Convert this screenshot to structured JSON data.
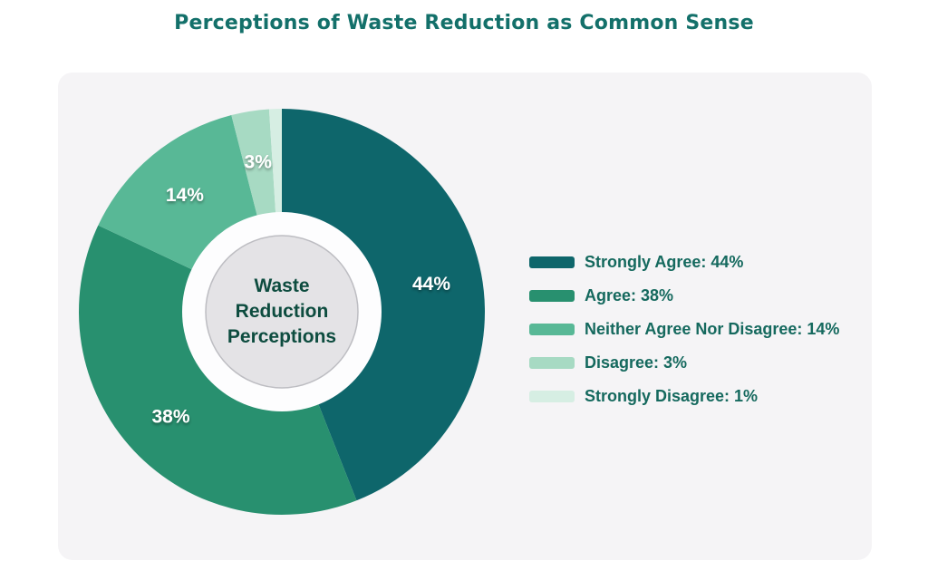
{
  "page": {
    "title": "Perceptions of Waste Reduction as Common Sense"
  },
  "donut": {
    "center_label": {
      "lines": [
        "Waste",
        "Reduction",
        "Perceptions"
      ]
    }
  },
  "legend": {
    "items": [
      {
        "text": "Strongly Agree: 44%",
        "color": "#0e666b"
      },
      {
        "text": "Agree: 38%",
        "color": "#28906f"
      },
      {
        "text": "Neither Agree Nor Disagree: 14%",
        "color": "#58b896"
      },
      {
        "text": "Disagree: 3%",
        "color": "#a7dac3"
      },
      {
        "text": "Strongly Disagree: 1%",
        "color": "#d6eee3"
      }
    ]
  },
  "chart_data": {
    "type": "pie",
    "subtype": "donut",
    "title": "Perceptions of Waste Reduction as Common Sense",
    "categories": [
      "Strongly Agree",
      "Agree",
      "Neither Agree Nor Disagree",
      "Disagree",
      "Strongly Disagree"
    ],
    "values": [
      44,
      38,
      14,
      3,
      1
    ],
    "unit": "percent",
    "slice_labels": [
      "44%",
      "38%",
      "14%",
      "3%",
      ""
    ],
    "colors": [
      "#0e666b",
      "#28906f",
      "#58b896",
      "#a7dac3",
      "#d6eee3"
    ],
    "start_angle_deg": 0,
    "direction": "clockwise",
    "center_label": "Waste Reduction Perceptions",
    "legend_position": "right",
    "legend_entries": [
      "Strongly Agree: 44%",
      "Agree: 38%",
      "Neither Agree Nor Disagree: 14%",
      "Disagree: 3%",
      "Strongly Disagree: 1%"
    ],
    "colors_ui": {
      "card_background": "#f5f4f6",
      "hole_fill": "#fdfdfe",
      "center_disc_fill": "#e4e3e6",
      "center_disc_border": "#bdbdc2",
      "title_text": "#13706a",
      "legend_text": "#15695e",
      "center_text": "#0d4c3f",
      "slice_label_text": "#ffffff"
    }
  }
}
